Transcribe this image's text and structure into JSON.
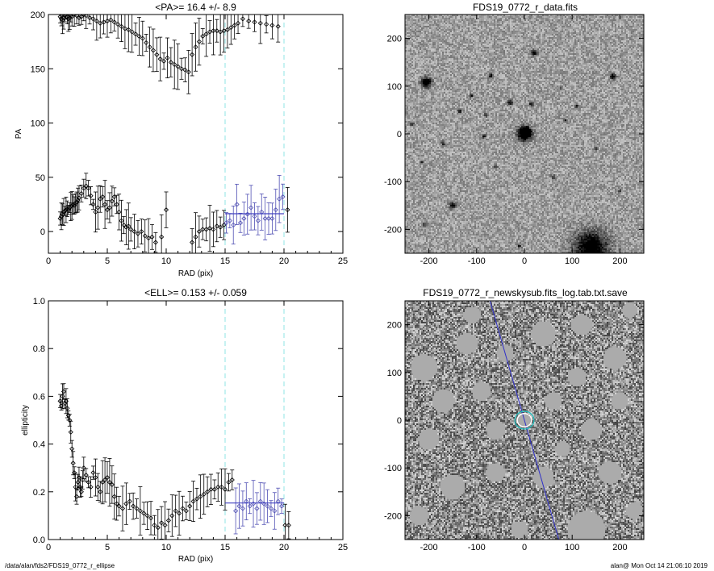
{
  "footer": {
    "path": "/data/alan/fds2/FDS19_0772_r_ellipse",
    "stamp": "alan@  Mon Oct 14 21:06:10 2019"
  },
  "chart_data": [
    {
      "type": "scatter",
      "title": "<PA>=  16.4 +/-   8.9",
      "xlabel": "RAD (pix)",
      "ylabel": "PA",
      "xlim": [
        0,
        25
      ],
      "ylim": [
        -20,
        200
      ],
      "xticks": [
        0,
        5,
        10,
        15,
        20,
        25
      ],
      "yticks": [
        0,
        50,
        100,
        150,
        200
      ],
      "vlines": [
        15,
        20
      ],
      "mean_segment": {
        "x": [
          15,
          20
        ],
        "y": 16.4
      },
      "series": [
        {
          "x": [
            1.0,
            1.1,
            1.2,
            1.3,
            1.4,
            1.5,
            1.6,
            1.7,
            1.8,
            1.9,
            2.0,
            2.1,
            2.2,
            2.3,
            2.4,
            2.5,
            2.6,
            2.8,
            3.0,
            3.2,
            3.4,
            3.6,
            3.8,
            4.0,
            4.2,
            4.4,
            4.6,
            4.8,
            5.0,
            5.2,
            5.4,
            5.6,
            5.8,
            6.0,
            6.2,
            6.4,
            6.6,
            6.8,
            7.0,
            7.3,
            7.6,
            7.9,
            8.2,
            8.5,
            8.8,
            9.1,
            9.6,
            10.0,
            12.2,
            12.5,
            12.8,
            13.1,
            13.4,
            13.7,
            14.0,
            14.3,
            14.6,
            14.9
          ],
          "y": [
            12,
            14,
            16,
            18,
            19,
            20,
            21,
            20,
            22,
            23,
            24,
            25,
            24,
            26,
            27,
            29,
            31,
            35,
            40,
            42,
            40,
            33,
            25,
            18,
            22,
            30,
            32,
            25,
            20,
            22,
            28,
            32,
            25,
            18,
            10,
            6,
            4,
            5,
            2,
            0,
            -2,
            0,
            -4,
            -6,
            -5,
            -10,
            -5,
            20,
            -10,
            -5,
            0,
            2,
            2,
            3,
            2,
            5,
            4,
            6
          ],
          "color": "#000000"
        },
        {
          "x": [
            15.1,
            15.4,
            15.7,
            16.0,
            16.3,
            16.6,
            16.9,
            17.2,
            17.5,
            17.8,
            18.1,
            18.4,
            18.7,
            19.0,
            19.3,
            19.6,
            19.9
          ],
          "y": [
            8,
            10,
            6,
            25,
            8,
            12,
            16,
            22,
            14,
            10,
            18,
            12,
            12,
            12,
            20,
            30,
            32
          ],
          "color": "#5050b4"
        },
        {
          "x": [
            20.3
          ],
          "y": [
            20
          ],
          "color": "#000000"
        },
        {
          "x": [
            1.0,
            1.1,
            1.2,
            1.3,
            1.4,
            1.5,
            1.6,
            1.7,
            1.8,
            1.9,
            2.0,
            2.2,
            2.4,
            2.6,
            2.8,
            3.0,
            3.2,
            3.5,
            3.8,
            4.1,
            4.4,
            4.7,
            5.0,
            5.3,
            5.6,
            5.9,
            6.2,
            6.5,
            6.8,
            7.1,
            7.4,
            7.7,
            8.0,
            8.3,
            8.6,
            8.9,
            9.2,
            9.5,
            9.8,
            10.1,
            10.4,
            10.7,
            11.0,
            11.3,
            11.6,
            11.9,
            12.2,
            12.5,
            12.8,
            13.1,
            13.4,
            13.7,
            14.0,
            14.3,
            14.6,
            14.9,
            15.2,
            15.5,
            15.8,
            16.1,
            16.5,
            17.0,
            17.5,
            18.0,
            18.5,
            19.0,
            19.5
          ],
          "y": [
            198,
            196,
            195,
            197,
            199,
            200,
            198,
            196,
            197,
            199,
            198,
            200,
            199,
            197,
            198,
            200,
            199,
            197,
            196,
            194,
            192,
            193,
            194,
            195,
            193,
            191,
            189,
            187,
            186,
            184,
            182,
            180,
            178,
            174,
            170,
            167,
            163,
            159,
            157,
            160,
            156,
            154,
            152,
            150,
            149,
            147,
            163,
            170,
            175,
            180,
            182,
            184,
            185,
            185,
            184,
            185,
            186,
            188,
            190,
            192,
            196,
            194,
            193,
            192,
            191,
            190,
            189
          ],
          "color": "#000000"
        }
      ]
    },
    {
      "type": "image",
      "title": "FDS19_0772_r_data.fits",
      "xlim": [
        -250,
        250
      ],
      "ylim": [
        -250,
        250
      ],
      "xticks": [
        -200,
        -100,
        0,
        100,
        200
      ],
      "yticks": [
        -200,
        -100,
        0,
        100,
        200
      ],
      "sources": [
        {
          "x": 0,
          "y": 0,
          "r": 14,
          "v": 0.95
        },
        {
          "x": 4,
          "y": 4,
          "r": 9,
          "v": 0.85
        },
        {
          "x": -205,
          "y": 108,
          "r": 10,
          "v": 0.9
        },
        {
          "x": 140,
          "y": -240,
          "r": 34,
          "v": 0.85
        },
        {
          "x": 185,
          "y": 120,
          "r": 6,
          "v": 0.7
        },
        {
          "x": -150,
          "y": -150,
          "r": 6,
          "v": 0.75
        },
        {
          "x": 20,
          "y": 170,
          "r": 6,
          "v": 0.7
        },
        {
          "x": -70,
          "y": 122,
          "r": 5,
          "v": 0.6
        },
        {
          "x": -30,
          "y": 65,
          "r": 5,
          "v": 0.65
        },
        {
          "x": 15,
          "y": 63,
          "r": 5,
          "v": 0.65
        },
        {
          "x": 110,
          "y": 58,
          "r": 4,
          "v": 0.6
        },
        {
          "x": -135,
          "y": 48,
          "r": 4,
          "v": 0.6
        },
        {
          "x": -80,
          "y": 40,
          "r": 4,
          "v": 0.55
        },
        {
          "x": 85,
          "y": 28,
          "r": 4,
          "v": 0.55
        },
        {
          "x": -85,
          "y": -5,
          "r": 4,
          "v": 0.55
        },
        {
          "x": -170,
          "y": -20,
          "r": 4,
          "v": 0.55
        },
        {
          "x": 150,
          "y": -30,
          "r": 4,
          "v": 0.55
        },
        {
          "x": -60,
          "y": -70,
          "r": 4,
          "v": 0.5
        },
        {
          "x": 60,
          "y": -90,
          "r": 4,
          "v": 0.5
        },
        {
          "x": -210,
          "y": -190,
          "r": 4,
          "v": 0.5
        },
        {
          "x": -10,
          "y": -235,
          "r": 4,
          "v": 0.55
        },
        {
          "x": -235,
          "y": 20,
          "r": 4,
          "v": 0.5
        },
        {
          "x": -110,
          "y": 80,
          "r": 4,
          "v": 0.55
        },
        {
          "x": 75,
          "y": 95,
          "r": 3,
          "v": 0.5
        },
        {
          "x": 200,
          "y": -120,
          "r": 3,
          "v": 0.5
        },
        {
          "x": -215,
          "y": -60,
          "r": 3,
          "v": 0.5
        }
      ]
    },
    {
      "type": "scatter",
      "title": "<ELL>= 0.153 +/-  0.059",
      "xlabel": "RAD (pix)",
      "ylabel": "ellipticity",
      "xlim": [
        0,
        25
      ],
      "ylim": [
        0,
        1
      ],
      "xticks": [
        0,
        5,
        10,
        15,
        20,
        25
      ],
      "yticks": [
        0.0,
        0.2,
        0.4,
        0.6,
        0.8,
        1.0
      ],
      "vlines": [
        15,
        20
      ],
      "mean_segment": {
        "x": [
          15,
          20
        ],
        "y": 0.153
      },
      "series": [
        {
          "x": [
            1.0,
            1.1,
            1.2,
            1.3,
            1.4,
            1.5,
            1.6,
            1.7,
            1.8,
            1.9,
            2.0,
            2.1,
            2.2,
            2.3,
            2.4,
            2.5,
            2.6,
            2.7,
            2.8,
            2.9,
            3.0,
            3.2,
            3.4,
            3.6,
            3.8,
            4.0,
            4.2,
            4.4,
            4.6,
            4.8,
            5.0,
            5.2,
            5.4,
            5.6,
            5.8,
            6.0,
            6.3,
            6.6,
            6.9,
            7.2,
            7.5,
            7.8,
            8.1,
            8.4,
            8.7,
            9.0,
            9.3,
            9.6,
            9.9,
            10.2,
            10.5,
            10.8,
            11.1,
            11.4,
            11.7,
            12.0,
            12.3,
            12.6,
            12.9,
            13.2,
            13.5,
            13.8,
            14.1,
            14.4,
            14.7,
            15.0,
            15.3,
            15.6
          ],
          "y": [
            0.58,
            0.56,
            0.6,
            0.62,
            0.57,
            0.58,
            0.55,
            0.52,
            0.5,
            0.45,
            0.38,
            0.32,
            0.28,
            0.22,
            0.18,
            0.24,
            0.26,
            0.22,
            0.2,
            0.25,
            0.3,
            0.27,
            0.24,
            0.22,
            0.28,
            0.26,
            0.22,
            0.2,
            0.24,
            0.25,
            0.26,
            0.24,
            0.23,
            0.18,
            0.15,
            0.14,
            0.13,
            0.15,
            0.16,
            0.14,
            0.13,
            0.12,
            0.11,
            0.1,
            0.09,
            0.06,
            0.05,
            0.07,
            0.06,
            0.08,
            0.1,
            0.12,
            0.11,
            0.13,
            0.12,
            0.14,
            0.16,
            0.17,
            0.18,
            0.19,
            0.2,
            0.21,
            0.21,
            0.22,
            0.22,
            0.21,
            0.24,
            0.25
          ],
          "color": "#000000"
        },
        {
          "x": [
            15.9,
            16.2,
            16.5,
            16.8,
            17.1,
            17.4,
            17.7,
            18.0,
            18.3,
            18.6,
            18.9,
            19.2,
            19.5,
            19.8
          ],
          "y": [
            0.12,
            0.14,
            0.13,
            0.16,
            0.14,
            0.15,
            0.13,
            0.16,
            0.15,
            0.14,
            0.13,
            0.12,
            0.16,
            0.14
          ],
          "color": "#5050b4"
        },
        {
          "x": [
            20.1,
            20.4
          ],
          "y": [
            0.06,
            0.06
          ],
          "color": "#000000"
        }
      ]
    },
    {
      "type": "image",
      "title": "FDS19_0772_r_newskysub.fits_log.tab.txt.save",
      "xlim": [
        -250,
        250
      ],
      "ylim": [
        -250,
        250
      ],
      "xticks": [
        -200,
        -100,
        0,
        100,
        200
      ],
      "yticks": [
        -200,
        -100,
        0,
        100,
        200
      ],
      "major_axis_line": {
        "x1": -72,
        "y1": 250,
        "x2": 72,
        "y2": -250
      },
      "ellipse_radii": [
        15,
        20
      ],
      "masks": [
        {
          "x": -210,
          "y": 110,
          "r": 28
        },
        {
          "x": -120,
          "y": 160,
          "r": 22
        },
        {
          "x": -170,
          "y": 40,
          "r": 24
        },
        {
          "x": -90,
          "y": 60,
          "r": 20
        },
        {
          "x": -40,
          "y": 140,
          "r": 18
        },
        {
          "x": 40,
          "y": 180,
          "r": 26
        },
        {
          "x": 120,
          "y": 200,
          "r": 22
        },
        {
          "x": 190,
          "y": 130,
          "r": 24
        },
        {
          "x": 110,
          "y": 90,
          "r": 20
        },
        {
          "x": 200,
          "y": 40,
          "r": 18
        },
        {
          "x": 140,
          "y": -20,
          "r": 22
        },
        {
          "x": 60,
          "y": 40,
          "r": 18
        },
        {
          "x": -60,
          "y": -20,
          "r": 20
        },
        {
          "x": -200,
          "y": -40,
          "r": 22
        },
        {
          "x": -150,
          "y": -140,
          "r": 26
        },
        {
          "x": -60,
          "y": -110,
          "r": 20
        },
        {
          "x": 40,
          "y": -120,
          "r": 22
        },
        {
          "x": 180,
          "y": -110,
          "r": 24
        },
        {
          "x": 130,
          "y": -230,
          "r": 40
        },
        {
          "x": -10,
          "y": -230,
          "r": 18
        },
        {
          "x": -220,
          "y": -200,
          "r": 20
        },
        {
          "x": 80,
          "y": -60,
          "r": 16
        },
        {
          "x": 0,
          "y": 0,
          "r": 14
        },
        {
          "x": -110,
          "y": 220,
          "r": 18
        },
        {
          "x": 220,
          "y": 230,
          "r": 16
        },
        {
          "x": 230,
          "y": -190,
          "r": 18
        }
      ]
    }
  ]
}
